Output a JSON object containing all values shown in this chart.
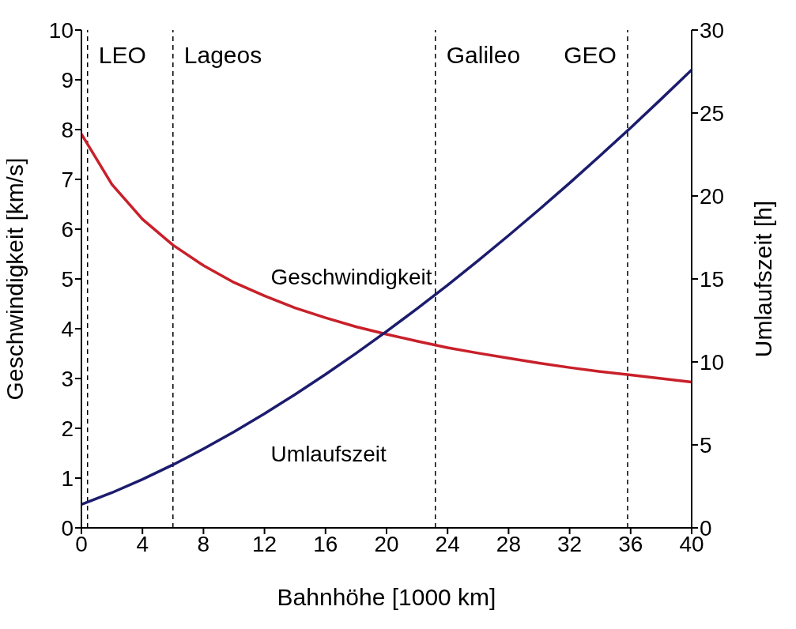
{
  "chart_data": {
    "type": "line",
    "xlabel": "Bahnhöhe [1000 km]",
    "ylabel": "Geschwindigkeit [km/s]",
    "y2label": "Umlaufszeit [h]",
    "x": [
      0,
      2,
      4,
      6,
      8,
      10,
      12,
      14,
      16,
      18,
      20,
      22,
      24,
      26,
      28,
      30,
      32,
      34,
      36,
      38,
      40
    ],
    "series": [
      {
        "name": "Geschwindigkeit",
        "color": "#c8202a",
        "values": [
          7.91,
          6.9,
          6.2,
          5.68,
          5.27,
          4.93,
          4.66,
          4.42,
          4.22,
          4.04,
          3.89,
          3.75,
          3.62,
          3.51,
          3.41,
          3.31,
          3.22,
          3.14,
          3.07,
          3.0,
          2.93
        ]
      },
      {
        "name": "Umlaufszeit",
        "color": "#1c1c6e",
        "axis": "y2",
        "values": [
          1.41,
          2.12,
          2.92,
          3.8,
          4.76,
          5.79,
          6.88,
          8.04,
          9.25,
          10.52,
          11.84,
          13.21,
          14.63,
          16.1,
          17.62,
          19.18,
          20.78,
          22.43,
          24.11,
          25.84,
          27.6
        ]
      }
    ],
    "xlim": [
      0,
      40
    ],
    "xticks": [
      0,
      4,
      8,
      12,
      16,
      20,
      24,
      28,
      32,
      36,
      40
    ],
    "ylim": [
      0,
      10
    ],
    "yticks": [
      0,
      1,
      2,
      3,
      4,
      5,
      6,
      7,
      8,
      9,
      10
    ],
    "y2lim": [
      0,
      30
    ],
    "y2ticks": [
      0,
      5,
      10,
      15,
      20,
      25,
      30
    ],
    "ref_lines": [
      {
        "axis": "x",
        "value": 0.4,
        "label": "LEO",
        "line_style": "dashed"
      },
      {
        "axis": "x",
        "value": 6,
        "label": "Lageos",
        "line_style": "dashed"
      },
      {
        "axis": "x",
        "value": 23.2,
        "label": "Galileo",
        "line_style": "dashed"
      },
      {
        "axis": "x",
        "value": 35.8,
        "label": "GEO",
        "line_style": "dashed"
      }
    ],
    "grid": false,
    "legend": false,
    "marker": "none",
    "line_style": "solid"
  }
}
